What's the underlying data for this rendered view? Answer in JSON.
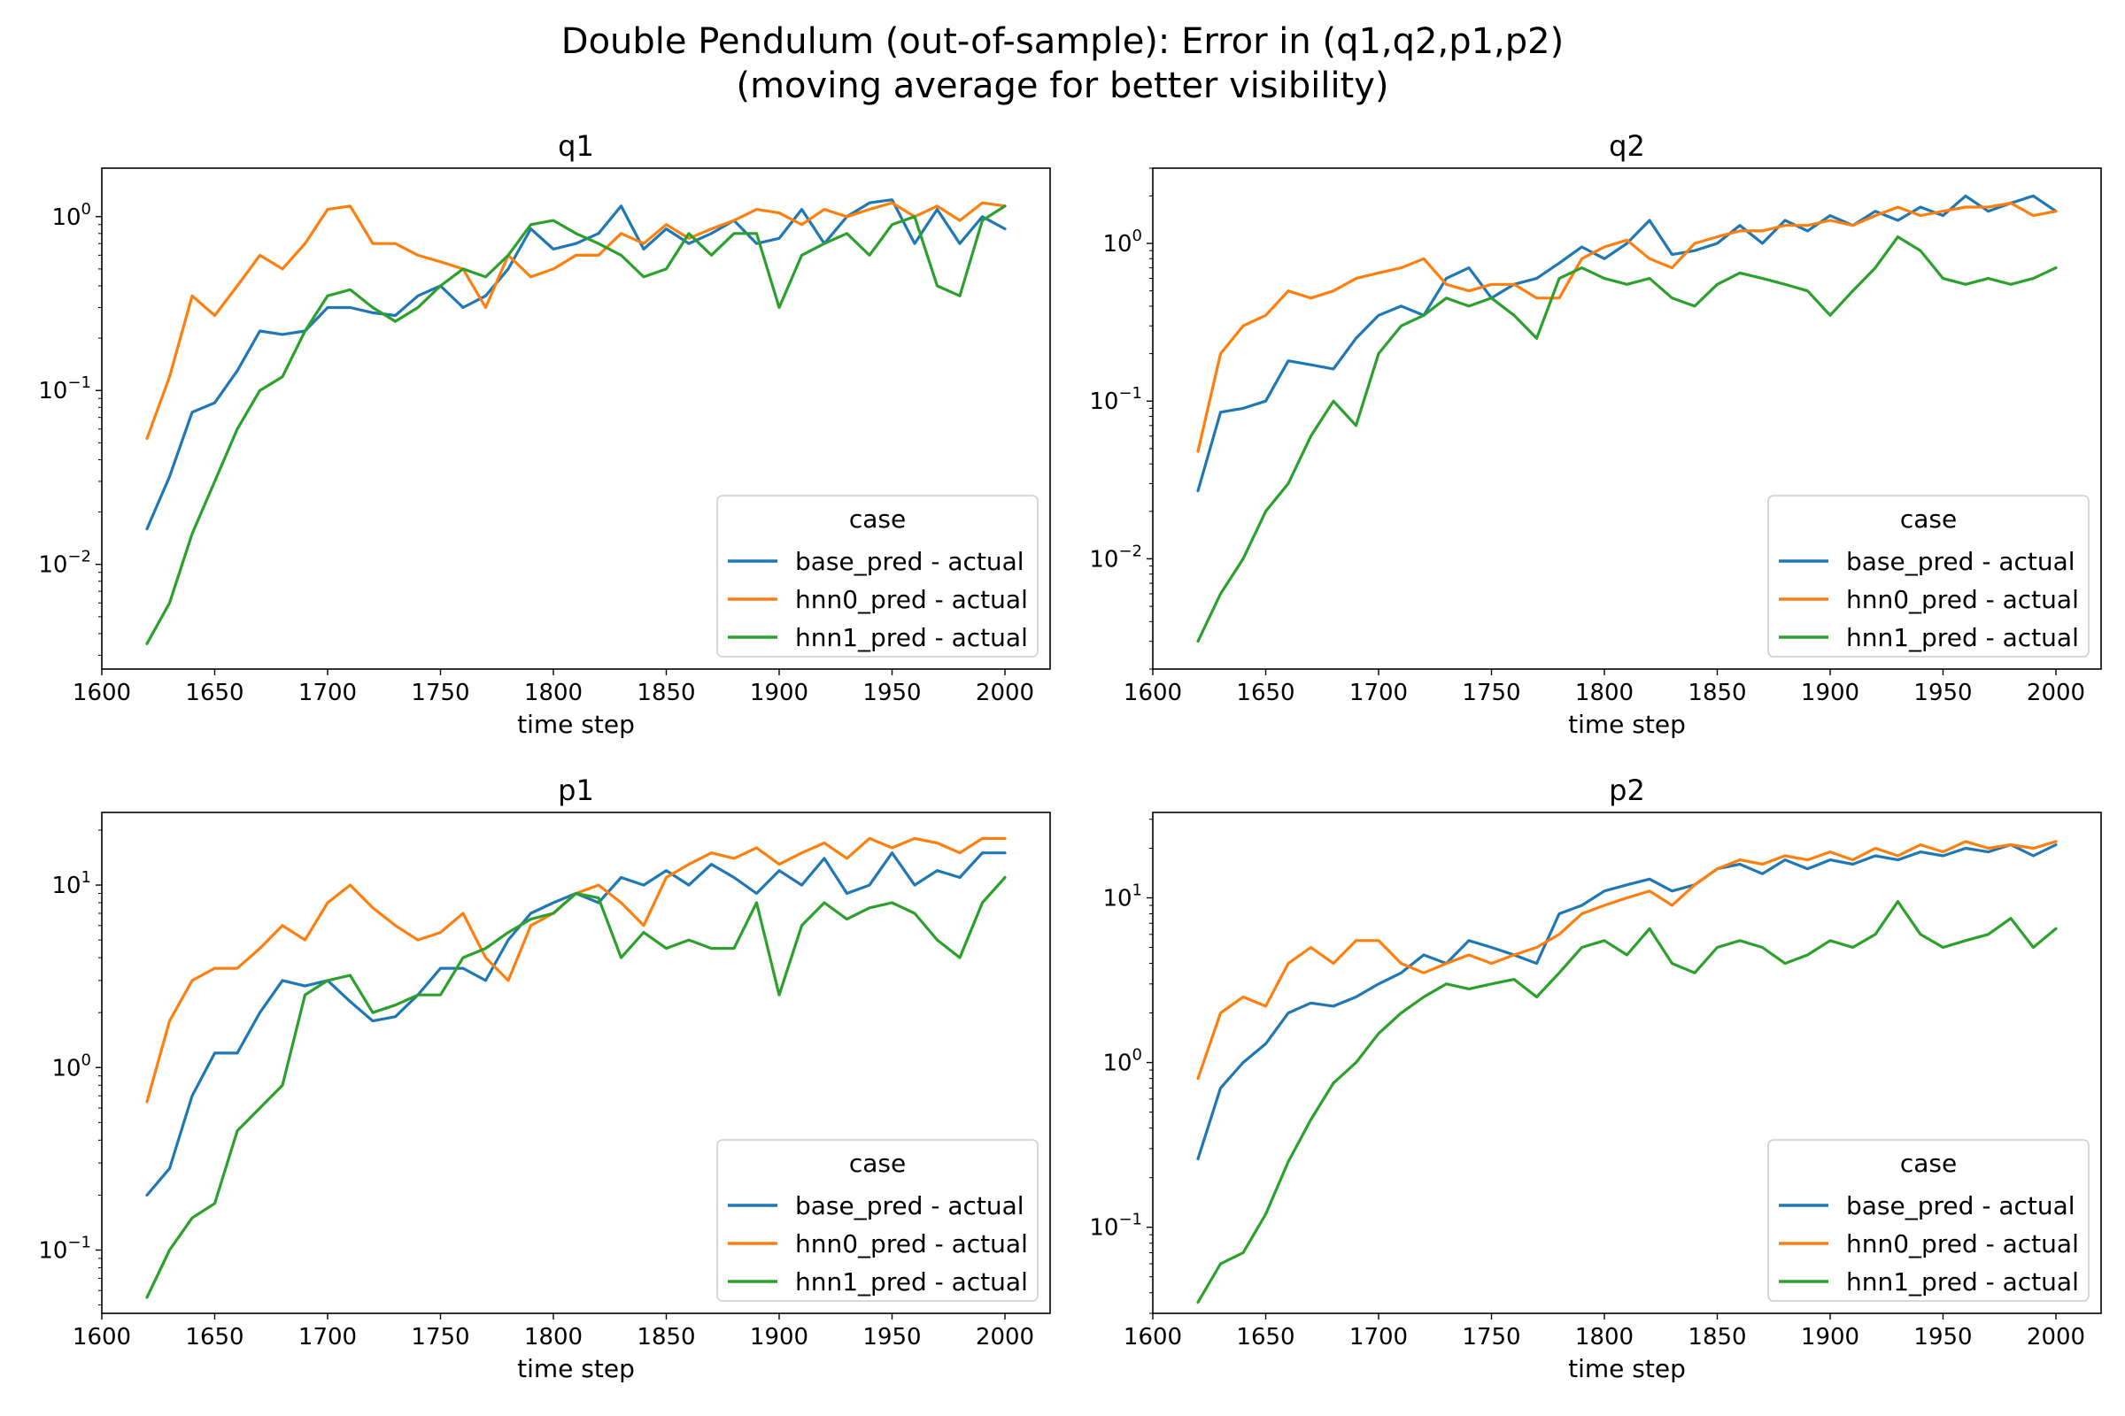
{
  "figure": {
    "title_line1": "Double Pendulum (out-of-sample): Error in (q1,q2,p1,p2)",
    "title_line2": "(moving average for better visibility)"
  },
  "colors": {
    "base": "#1f77b4",
    "hnn0": "#ff7f0e",
    "hnn1": "#2ca02c"
  },
  "chart_data": [
    {
      "type": "line",
      "title": "q1",
      "xlabel": "time step",
      "ylabel": "",
      "yscale": "log",
      "xlim": [
        1600,
        2020
      ],
      "ylim": [
        0.0025,
        1.9
      ],
      "xticks": [
        "1600",
        "1650",
        "1700",
        "1750",
        "1800",
        "1850",
        "1900",
        "1950",
        "2000"
      ],
      "yticks": [
        {
          "label": "10",
          "exp": "−2"
        },
        {
          "label": "10",
          "exp": "−1"
        },
        {
          "label": "10",
          "exp": "0"
        }
      ],
      "legend": {
        "title": "case",
        "placement": "lower-right"
      },
      "x": [
        1620,
        1630,
        1640,
        1650,
        1660,
        1670,
        1680,
        1690,
        1700,
        1710,
        1720,
        1730,
        1740,
        1750,
        1760,
        1770,
        1780,
        1790,
        1800,
        1810,
        1820,
        1830,
        1840,
        1850,
        1860,
        1870,
        1880,
        1890,
        1900,
        1910,
        1920,
        1930,
        1940,
        1950,
        1960,
        1970,
        1980,
        1990,
        2000
      ],
      "series": [
        {
          "name": "base_pred - actual",
          "color_key": "base",
          "values": [
            0.016,
            0.032,
            0.075,
            0.085,
            0.13,
            0.22,
            0.21,
            0.22,
            0.3,
            0.3,
            0.28,
            0.27,
            0.35,
            0.4,
            0.3,
            0.35,
            0.5,
            0.85,
            0.65,
            0.7,
            0.8,
            1.15,
            0.65,
            0.85,
            0.7,
            0.8,
            0.95,
            0.7,
            0.75,
            1.1,
            0.7,
            1.0,
            1.2,
            1.25,
            0.7,
            1.1,
            0.7,
            1.0,
            0.85
          ]
        },
        {
          "name": "hnn0_pred - actual",
          "color_key": "hnn0",
          "values": [
            0.053,
            0.12,
            0.35,
            0.27,
            0.4,
            0.6,
            0.5,
            0.7,
            1.1,
            1.15,
            0.7,
            0.7,
            0.6,
            0.55,
            0.5,
            0.3,
            0.6,
            0.45,
            0.5,
            0.6,
            0.6,
            0.8,
            0.7,
            0.9,
            0.75,
            0.85,
            0.95,
            1.1,
            1.05,
            0.9,
            1.1,
            1.0,
            1.1,
            1.2,
            1.0,
            1.15,
            0.95,
            1.2,
            1.15
          ]
        },
        {
          "name": "hnn1_pred - actual",
          "color_key": "hnn1",
          "values": [
            0.0035,
            0.006,
            0.015,
            0.03,
            0.06,
            0.1,
            0.12,
            0.22,
            0.35,
            0.38,
            0.3,
            0.25,
            0.3,
            0.4,
            0.5,
            0.45,
            0.6,
            0.9,
            0.95,
            0.8,
            0.7,
            0.6,
            0.45,
            0.5,
            0.8,
            0.6,
            0.8,
            0.8,
            0.3,
            0.6,
            0.7,
            0.8,
            0.6,
            0.9,
            1.0,
            0.4,
            0.35,
            0.95,
            1.15
          ]
        }
      ]
    },
    {
      "type": "line",
      "title": "q2",
      "xlabel": "time step",
      "ylabel": "",
      "yscale": "log",
      "xlim": [
        1600,
        2020
      ],
      "ylim": [
        0.002,
        3.0
      ],
      "xticks": [
        "1600",
        "1650",
        "1700",
        "1750",
        "1800",
        "1850",
        "1900",
        "1950",
        "2000"
      ],
      "yticks": [
        {
          "label": "10",
          "exp": "−2"
        },
        {
          "label": "10",
          "exp": "−1"
        },
        {
          "label": "10",
          "exp": "0"
        }
      ],
      "legend": {
        "title": "case",
        "placement": "lower-right"
      },
      "x": [
        1620,
        1630,
        1640,
        1650,
        1660,
        1670,
        1680,
        1690,
        1700,
        1710,
        1720,
        1730,
        1740,
        1750,
        1760,
        1770,
        1780,
        1790,
        1800,
        1810,
        1820,
        1830,
        1840,
        1850,
        1860,
        1870,
        1880,
        1890,
        1900,
        1910,
        1920,
        1930,
        1940,
        1950,
        1960,
        1970,
        1980,
        1990,
        2000
      ],
      "series": [
        {
          "name": "base_pred - actual",
          "color_key": "base",
          "values": [
            0.027,
            0.085,
            0.09,
            0.1,
            0.18,
            0.17,
            0.16,
            0.25,
            0.35,
            0.4,
            0.35,
            0.6,
            0.7,
            0.45,
            0.55,
            0.6,
            0.75,
            0.95,
            0.8,
            1.0,
            1.4,
            0.85,
            0.9,
            1.0,
            1.3,
            1.0,
            1.4,
            1.2,
            1.5,
            1.3,
            1.6,
            1.4,
            1.7,
            1.5,
            2.0,
            1.6,
            1.8,
            2.0,
            1.6
          ]
        },
        {
          "name": "hnn0_pred - actual",
          "color_key": "hnn0",
          "values": [
            0.048,
            0.2,
            0.3,
            0.35,
            0.5,
            0.45,
            0.5,
            0.6,
            0.65,
            0.7,
            0.8,
            0.55,
            0.5,
            0.55,
            0.55,
            0.45,
            0.45,
            0.8,
            0.95,
            1.05,
            0.8,
            0.7,
            1.0,
            1.1,
            1.2,
            1.2,
            1.3,
            1.3,
            1.4,
            1.3,
            1.5,
            1.7,
            1.5,
            1.6,
            1.7,
            1.7,
            1.8,
            1.5,
            1.6
          ]
        },
        {
          "name": "hnn1_pred - actual",
          "color_key": "hnn1",
          "values": [
            0.003,
            0.006,
            0.01,
            0.02,
            0.03,
            0.06,
            0.1,
            0.07,
            0.2,
            0.3,
            0.35,
            0.45,
            0.4,
            0.45,
            0.35,
            0.25,
            0.6,
            0.7,
            0.6,
            0.55,
            0.6,
            0.45,
            0.4,
            0.55,
            0.65,
            0.6,
            0.55,
            0.5,
            0.35,
            0.5,
            0.7,
            1.1,
            0.9,
            0.6,
            0.55,
            0.6,
            0.55,
            0.6,
            0.7
          ]
        }
      ]
    },
    {
      "type": "line",
      "title": "p1",
      "xlabel": "time step",
      "ylabel": "",
      "yscale": "log",
      "xlim": [
        1600,
        2020
      ],
      "ylim": [
        0.045,
        25
      ],
      "xticks": [
        "1600",
        "1650",
        "1700",
        "1750",
        "1800",
        "1850",
        "1900",
        "1950",
        "2000"
      ],
      "yticks": [
        {
          "label": "10",
          "exp": "−1"
        },
        {
          "label": "10",
          "exp": "0"
        },
        {
          "label": "10",
          "exp": "1"
        }
      ],
      "legend": {
        "title": "case",
        "placement": "lower-right"
      },
      "x": [
        1620,
        1630,
        1640,
        1650,
        1660,
        1670,
        1680,
        1690,
        1700,
        1710,
        1720,
        1730,
        1740,
        1750,
        1760,
        1770,
        1780,
        1790,
        1800,
        1810,
        1820,
        1830,
        1840,
        1850,
        1860,
        1870,
        1880,
        1890,
        1900,
        1910,
        1920,
        1930,
        1940,
        1950,
        1960,
        1970,
        1980,
        1990,
        2000
      ],
      "series": [
        {
          "name": "base_pred - actual",
          "color_key": "base",
          "values": [
            0.2,
            0.28,
            0.7,
            1.2,
            1.2,
            2.0,
            3.0,
            2.8,
            3.0,
            2.3,
            1.8,
            1.9,
            2.5,
            3.5,
            3.5,
            3.0,
            5.0,
            7.0,
            8.0,
            9.0,
            8.0,
            11.0,
            10.0,
            12.0,
            10.0,
            13.0,
            11.0,
            9.0,
            12.0,
            10.0,
            14.0,
            9.0,
            10.0,
            15.0,
            10.0,
            12.0,
            11.0,
            15.0,
            15.0
          ]
        },
        {
          "name": "hnn0_pred - actual",
          "color_key": "hnn0",
          "values": [
            0.65,
            1.8,
            3.0,
            3.5,
            3.5,
            4.5,
            6.0,
            5.0,
            8.0,
            10.0,
            7.5,
            6.0,
            5.0,
            5.5,
            7.0,
            4.0,
            3.0,
            6.0,
            7.0,
            9.0,
            10.0,
            8.0,
            6.0,
            11.0,
            13.0,
            15.0,
            14.0,
            16.0,
            13.0,
            15.0,
            17.0,
            14.0,
            18.0,
            16.0,
            18.0,
            17.0,
            15.0,
            18.0,
            18.0
          ]
        },
        {
          "name": "hnn1_pred - actual",
          "color_key": "hnn1",
          "values": [
            0.055,
            0.1,
            0.15,
            0.18,
            0.45,
            0.6,
            0.8,
            2.5,
            3.0,
            3.2,
            2.0,
            2.2,
            2.5,
            2.5,
            4.0,
            4.5,
            5.5,
            6.5,
            7.0,
            9.0,
            8.5,
            4.0,
            5.5,
            4.5,
            5.0,
            4.5,
            4.5,
            8.0,
            2.5,
            6.0,
            8.0,
            6.5,
            7.5,
            8.0,
            7.0,
            5.0,
            4.0,
            8.0,
            11.0
          ]
        }
      ]
    },
    {
      "type": "line",
      "title": "p2",
      "xlabel": "time step",
      "ylabel": "",
      "yscale": "log",
      "xlim": [
        1600,
        2020
      ],
      "ylim": [
        0.03,
        33
      ],
      "xticks": [
        "1600",
        "1650",
        "1700",
        "1750",
        "1800",
        "1850",
        "1900",
        "1950",
        "2000"
      ],
      "yticks": [
        {
          "label": "10",
          "exp": "−1"
        },
        {
          "label": "10",
          "exp": "0"
        },
        {
          "label": "10",
          "exp": "1"
        }
      ],
      "legend": {
        "title": "case",
        "placement": "lower-right"
      },
      "x": [
        1620,
        1630,
        1640,
        1650,
        1660,
        1670,
        1680,
        1690,
        1700,
        1710,
        1720,
        1730,
        1740,
        1750,
        1760,
        1770,
        1780,
        1790,
        1800,
        1810,
        1820,
        1830,
        1840,
        1850,
        1860,
        1870,
        1880,
        1890,
        1900,
        1910,
        1920,
        1930,
        1940,
        1950,
        1960,
        1970,
        1980,
        1990,
        2000
      ],
      "series": [
        {
          "name": "base_pred - actual",
          "color_key": "base",
          "values": [
            0.26,
            0.7,
            1.0,
            1.3,
            2.0,
            2.3,
            2.2,
            2.5,
            3.0,
            3.5,
            4.5,
            4.0,
            5.5,
            5.0,
            4.5,
            4.0,
            8.0,
            9.0,
            11.0,
            12.0,
            13.0,
            11.0,
            12.0,
            15.0,
            16.0,
            14.0,
            17.0,
            15.0,
            17.0,
            16.0,
            18.0,
            17.0,
            19.0,
            18.0,
            20.0,
            19.0,
            21.0,
            18.0,
            21.0
          ]
        },
        {
          "name": "hnn0_pred - actual",
          "color_key": "hnn0",
          "values": [
            0.8,
            2.0,
            2.5,
            2.2,
            4.0,
            5.0,
            4.0,
            5.5,
            5.5,
            4.0,
            3.5,
            4.0,
            4.5,
            4.0,
            4.5,
            5.0,
            6.0,
            8.0,
            9.0,
            10.0,
            11.0,
            9.0,
            12.0,
            15.0,
            17.0,
            16.0,
            18.0,
            17.0,
            19.0,
            17.0,
            20.0,
            18.0,
            21.0,
            19.0,
            22.0,
            20.0,
            21.0,
            20.0,
            22.0
          ]
        },
        {
          "name": "hnn1_pred - actual",
          "color_key": "hnn1",
          "values": [
            0.035,
            0.06,
            0.07,
            0.12,
            0.25,
            0.45,
            0.75,
            1.0,
            1.5,
            2.0,
            2.5,
            3.0,
            2.8,
            3.0,
            3.2,
            2.5,
            3.5,
            5.0,
            5.5,
            4.5,
            6.5,
            4.0,
            3.5,
            5.0,
            5.5,
            5.0,
            4.0,
            4.5,
            5.5,
            5.0,
            6.0,
            9.5,
            6.0,
            5.0,
            5.5,
            6.0,
            7.5,
            5.0,
            6.5
          ]
        }
      ]
    }
  ]
}
